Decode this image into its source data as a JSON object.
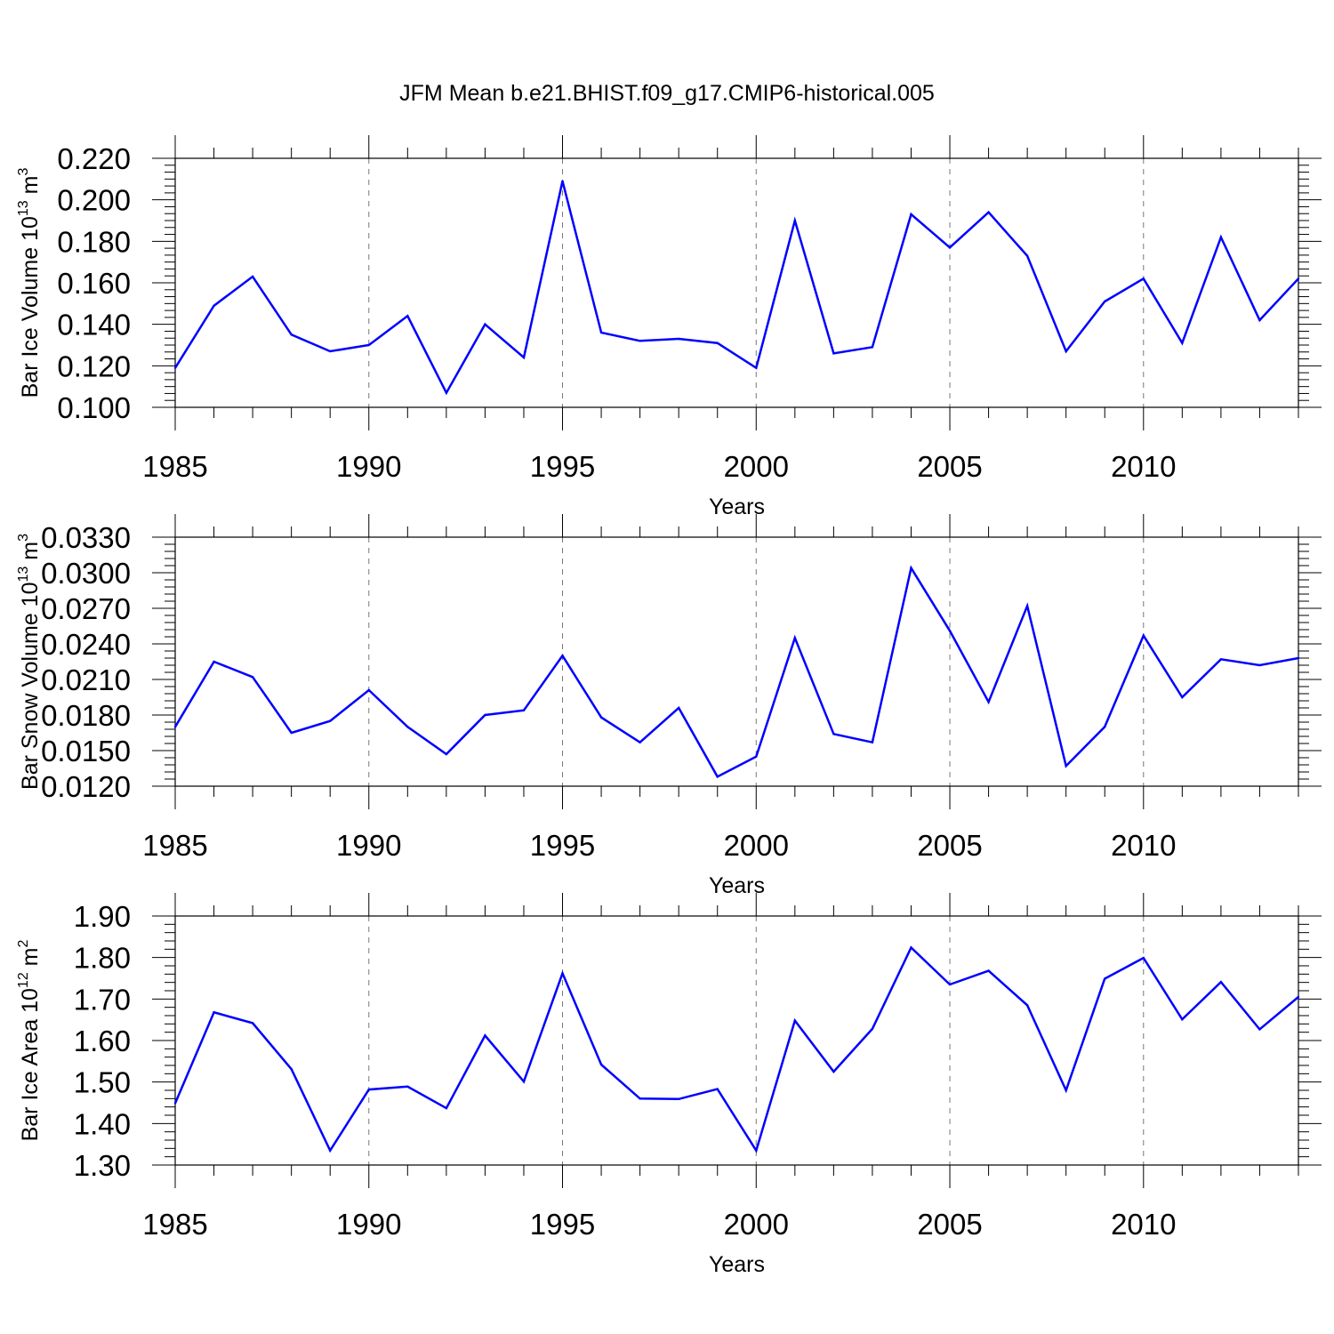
{
  "chart_data": [
    {
      "type": "line",
      "title": "JFM Mean b.e21.BHIST.f09_g17.CMIP6-historical.005",
      "xlabel": "Years",
      "ylabel": {
        "base": "Bar Ice Volume 10",
        "exp1": "13",
        "mid": " m",
        "exp2": "3"
      },
      "x": [
        1985,
        1986,
        1987,
        1988,
        1989,
        1990,
        1991,
        1992,
        1993,
        1994,
        1995,
        1996,
        1997,
        1998,
        1999,
        2000,
        2001,
        2002,
        2003,
        2004,
        2005,
        2006,
        2007,
        2008,
        2009,
        2010,
        2011,
        2012,
        2013,
        2014
      ],
      "values": [
        0.119,
        0.149,
        0.163,
        0.135,
        0.127,
        0.13,
        0.144,
        0.107,
        0.14,
        0.124,
        0.209,
        0.136,
        0.132,
        0.133,
        0.131,
        0.119,
        0.19,
        0.126,
        0.129,
        0.193,
        0.177,
        0.194,
        0.173,
        0.127,
        0.151,
        0.162,
        0.131,
        0.182,
        0.142,
        0.162
      ],
      "xlim": [
        1985,
        2014
      ],
      "ylim": [
        0.1,
        0.22
      ],
      "yticks": [
        "0.100",
        "0.120",
        "0.140",
        "0.160",
        "0.180",
        "0.200",
        "0.220"
      ],
      "xticks": [
        "1985",
        "1990",
        "1995",
        "2000",
        "2005",
        "2010"
      ],
      "line_color": "#0000ff"
    },
    {
      "type": "line",
      "xlabel": "Years",
      "ylabel": {
        "base": "Bar Snow Volume 10",
        "exp1": "13",
        "mid": " m",
        "exp2": "3"
      },
      "x": [
        1985,
        1986,
        1987,
        1988,
        1989,
        1990,
        1991,
        1992,
        1993,
        1994,
        1995,
        1996,
        1997,
        1998,
        1999,
        2000,
        2001,
        2002,
        2003,
        2004,
        2005,
        2006,
        2007,
        2008,
        2009,
        2010,
        2011,
        2012,
        2013,
        2014
      ],
      "values": [
        0.017,
        0.0225,
        0.0212,
        0.0165,
        0.0175,
        0.0201,
        0.017,
        0.0147,
        0.018,
        0.0184,
        0.023,
        0.0178,
        0.0157,
        0.0186,
        0.0128,
        0.0145,
        0.0245,
        0.0164,
        0.0157,
        0.0304,
        0.0251,
        0.0191,
        0.0272,
        0.0137,
        0.017,
        0.0247,
        0.0195,
        0.0227,
        0.0222,
        0.0228
      ],
      "xlim": [
        1985,
        2014
      ],
      "ylim": [
        0.012,
        0.033
      ],
      "yticks": [
        "0.0120",
        "0.0150",
        "0.0180",
        "0.0210",
        "0.0240",
        "0.0270",
        "0.0300",
        "0.0330"
      ],
      "xticks": [
        "1985",
        "1990",
        "1995",
        "2000",
        "2005",
        "2010"
      ],
      "line_color": "#0000ff"
    },
    {
      "type": "line",
      "xlabel": "Years",
      "ylabel": {
        "base": "Bar Ice Area 10",
        "exp1": "12",
        "mid": " m",
        "exp2": "2"
      },
      "x": [
        1985,
        1986,
        1987,
        1988,
        1989,
        1990,
        1991,
        1992,
        1993,
        1994,
        1995,
        1996,
        1997,
        1998,
        1999,
        2000,
        2001,
        2002,
        2003,
        2004,
        2005,
        2006,
        2007,
        2008,
        2009,
        2010,
        2011,
        2012,
        2013,
        2014
      ],
      "values": [
        1.449,
        1.668,
        1.642,
        1.531,
        1.335,
        1.482,
        1.489,
        1.437,
        1.612,
        1.501,
        1.762,
        1.542,
        1.46,
        1.459,
        1.483,
        1.335,
        1.648,
        1.525,
        1.628,
        1.824,
        1.735,
        1.768,
        1.685,
        1.48,
        1.749,
        1.799,
        1.651,
        1.741,
        1.627,
        1.705
      ],
      "xlim": [
        1985,
        2014
      ],
      "ylim": [
        1.3,
        1.9
      ],
      "yticks": [
        "1.30",
        "1.40",
        "1.50",
        "1.60",
        "1.70",
        "1.80",
        "1.90"
      ],
      "xticks": [
        "1985",
        "1990",
        "1995",
        "2000",
        "2005",
        "2010"
      ],
      "line_color": "#0000ff"
    }
  ]
}
